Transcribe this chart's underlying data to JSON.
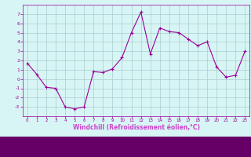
{
  "x": [
    0,
    1,
    2,
    3,
    4,
    5,
    6,
    7,
    8,
    9,
    10,
    11,
    12,
    13,
    14,
    15,
    16,
    17,
    18,
    19,
    20,
    21,
    22,
    23
  ],
  "y": [
    1.7,
    0.5,
    -0.9,
    -1.0,
    -3.0,
    -3.2,
    -3.0,
    0.8,
    0.7,
    1.1,
    2.3,
    5.0,
    7.2,
    2.7,
    5.5,
    5.1,
    5.0,
    4.3,
    3.6,
    4.0,
    1.3,
    0.2,
    0.4,
    3.0
  ],
  "line_color": "#990099",
  "marker": "+",
  "marker_size": 3,
  "marker_color": "#990099",
  "bg_color": "#d8f5f5",
  "grid_color": "#aacccc",
  "axis_label_color": "#990099",
  "tick_color": "#990099",
  "xlabel": "Windchill (Refroidissement éolien,°C)",
  "bottom_bar_color": "#660066",
  "ylim": [
    -4,
    8
  ],
  "xlim": [
    -0.5,
    23.5
  ],
  "yticks": [
    -3,
    -2,
    -1,
    0,
    1,
    2,
    3,
    4,
    5,
    6,
    7
  ],
  "xticks": [
    0,
    1,
    2,
    3,
    4,
    5,
    6,
    7,
    8,
    9,
    10,
    11,
    12,
    13,
    14,
    15,
    16,
    17,
    18,
    19,
    20,
    21,
    22,
    23
  ]
}
